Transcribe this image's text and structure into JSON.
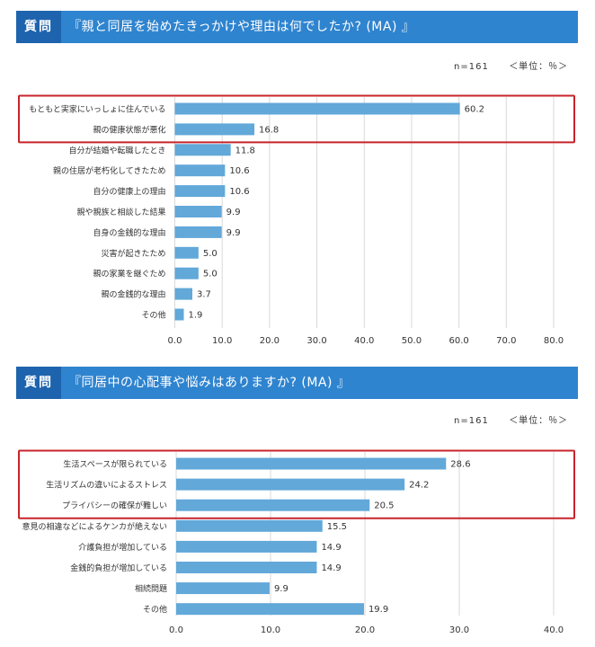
{
  "colors": {
    "header": "#2f84cf",
    "header_tag": "#1e63ad",
    "bar": "#62a8d9",
    "highlight": "#c8242b",
    "grid": "#d9d9d9"
  },
  "chart_data": [
    {
      "type": "bar",
      "orientation": "horizontal",
      "tag": "質問",
      "question": "『親と同居を始めたきっかけや理由は何でしたか? (MA) 』",
      "sample": "n=161",
      "unit": "＜単位：％＞",
      "xlim": [
        0,
        80
      ],
      "xticks": [
        "0.0",
        "10.0",
        "20.0",
        "30.0",
        "40.0",
        "50.0",
        "60.0",
        "70.0",
        "80.0"
      ],
      "grid": true,
      "highlight_count": 2,
      "categories": [
        "もともと実家にいっしょに住んでいる",
        "親の健康状態が悪化",
        "自分が結婚や転職したとき",
        "親の住居が老朽化してきたため",
        "自分の健康上の理由",
        "親や親族と相談した結果",
        "自身の金銭的な理由",
        "災害が起きたため",
        "親の家業を継ぐため",
        "親の金銭的な理由",
        "その他"
      ],
      "values": [
        60.2,
        16.8,
        11.8,
        10.6,
        10.6,
        9.9,
        9.9,
        5.0,
        5.0,
        3.7,
        1.9
      ],
      "labels": [
        "60.2",
        "16.8",
        "11.8",
        "10.6",
        "10.6",
        "9.9",
        "9.9",
        "5.0",
        "5.0",
        "3.7",
        "1.9"
      ]
    },
    {
      "type": "bar",
      "orientation": "horizontal",
      "tag": "質問",
      "question": "『同居中の心配事や悩みはありますか? (MA) 』",
      "sample": "n=161",
      "unit": "＜単位：％＞",
      "xlim": [
        0,
        40
      ],
      "xticks": [
        "0.0",
        "10.0",
        "20.0",
        "30.0",
        "40.0"
      ],
      "grid": true,
      "highlight_count": 3,
      "categories": [
        "生活スペースが限られている",
        "生活リズムの違いによるストレス",
        "プライバシーの確保が難しい",
        "意見の相違などによるケンカが絶えない",
        "介護負担が増加している",
        "金銭的負担が増加している",
        "相続問題",
        "その他"
      ],
      "values": [
        28.6,
        24.2,
        20.5,
        15.5,
        14.9,
        14.9,
        9.9,
        19.9
      ],
      "labels": [
        "28.6",
        "24.2",
        "20.5",
        "15.5",
        "14.9",
        "14.9",
        "9.9",
        "19.9"
      ]
    }
  ]
}
